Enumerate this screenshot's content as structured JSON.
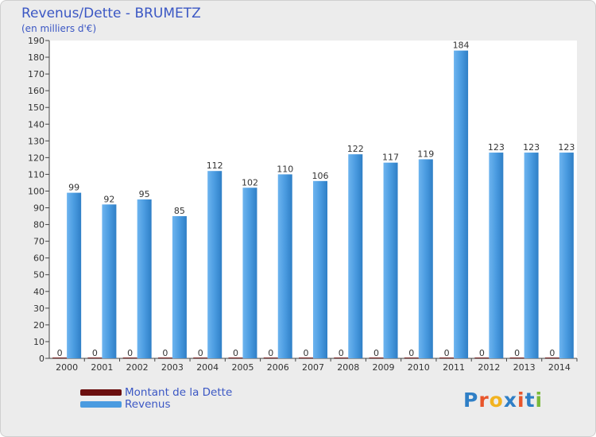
{
  "title": "Revenus/Dette - BRUMETZ",
  "subtitle": "(en milliers d'€)",
  "colors": {
    "revenus": "#4a9be0",
    "dette": "#6b0f0f",
    "text": "#3b57c4",
    "background": "#ececec",
    "plot": "#ffffff"
  },
  "logo": "Proxiti",
  "chart_data": {
    "type": "bar",
    "title": "Revenus/Dette - BRUMETZ",
    "ylabel": "(en milliers d'€)",
    "xlabel": "",
    "categories": [
      "2000",
      "2001",
      "2002",
      "2003",
      "2004",
      "2005",
      "2006",
      "2007",
      "2008",
      "2009",
      "2010",
      "2011",
      "2012",
      "2013",
      "2014"
    ],
    "series": [
      {
        "name": "Montant de la Dette",
        "color": "#6b0f0f",
        "values": [
          0,
          0,
          0,
          0,
          0,
          0,
          0,
          0,
          0,
          0,
          0,
          0,
          0,
          0,
          0
        ]
      },
      {
        "name": "Revenus",
        "color": "#4a9be0",
        "values": [
          99,
          92,
          95,
          85,
          112,
          102,
          110,
          106,
          122,
          117,
          119,
          184,
          123,
          123,
          123
        ]
      }
    ],
    "ylim": [
      0,
      190
    ],
    "ytick_step": 10,
    "grid": false,
    "legend": "bottom-left"
  }
}
